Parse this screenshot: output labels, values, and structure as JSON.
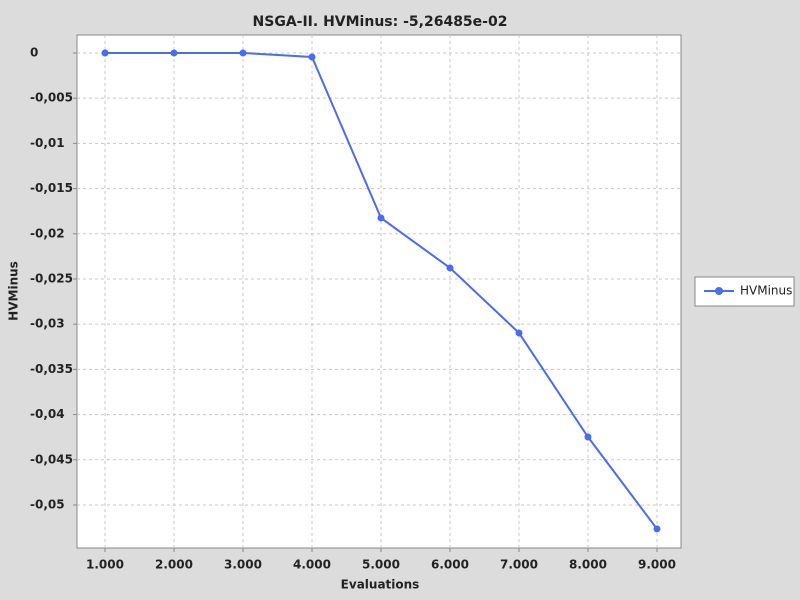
{
  "chart_data": {
    "type": "line",
    "title": "NSGA-II. HVMinus: -5,26485e-02",
    "x_label": "Evaluations",
    "y_label": "HVMinus",
    "x": [
      1000,
      2000,
      3000,
      4000,
      5000,
      6000,
      7000,
      8000,
      9000
    ],
    "series": [
      {
        "name": "HVMinus",
        "color": "#4a6cf0",
        "values": [
          0,
          0,
          0,
          -0.00044,
          -0.01825,
          -0.02378,
          -0.03097,
          -0.04248,
          -0.05265
        ]
      }
    ],
    "xlim": [
      594,
      9348
    ],
    "xticks": [
      {
        "value": 1000,
        "label": "1.000"
      },
      {
        "value": 2000,
        "label": "2.000"
      },
      {
        "value": 3000,
        "label": "3.000"
      },
      {
        "value": 4000,
        "label": "4.000"
      },
      {
        "value": 5000,
        "label": "5.000"
      },
      {
        "value": 6000,
        "label": "6.000"
      },
      {
        "value": 7000,
        "label": "7.000"
      },
      {
        "value": 8000,
        "label": "8.000"
      },
      {
        "value": 9000,
        "label": "9.000"
      }
    ],
    "ylim": [
      -0.05476,
      0.00199
    ],
    "yticks": [
      0,
      {
        "value": -0.005,
        "label": "-0,005"
      },
      {
        "value": -0.01,
        "label": "-0,01"
      },
      {
        "value": -0.015,
        "label": "-0,015"
      },
      {
        "value": -0.02,
        "label": "-0,02"
      },
      {
        "value": -0.025,
        "label": "-0,025"
      },
      {
        "value": -0.03,
        "label": "-0,03"
      },
      {
        "value": -0.035,
        "label": "-0,035"
      },
      {
        "value": -0.04,
        "label": "-0,04"
      },
      {
        "value": -0.045,
        "label": "-0,045"
      },
      {
        "value": -0.05,
        "label": "-0,05"
      }
    ],
    "grid": true,
    "legend": "right"
  }
}
